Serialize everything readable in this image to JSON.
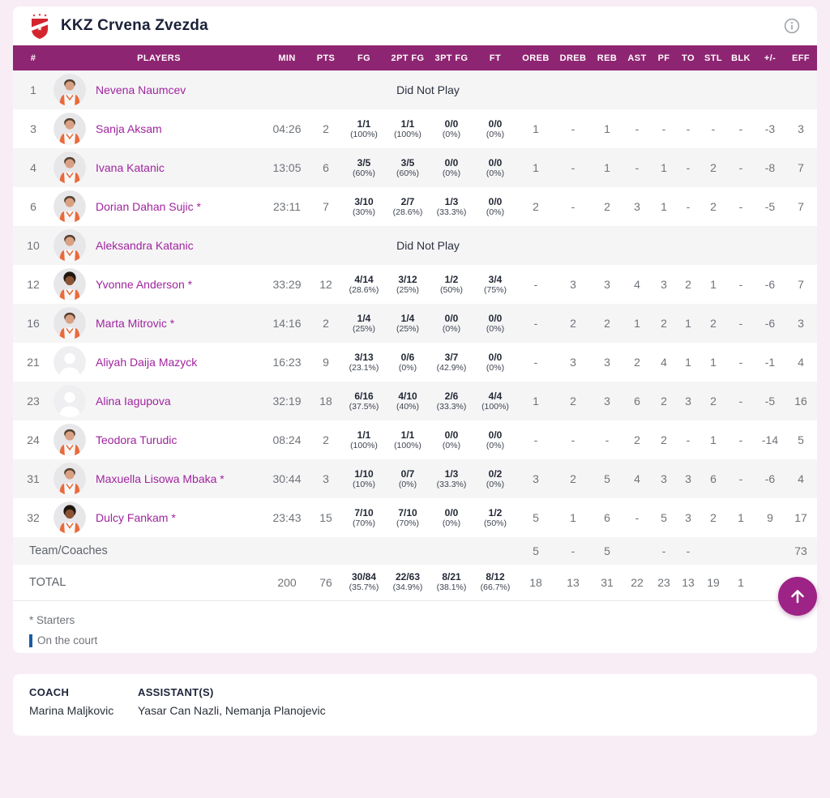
{
  "header": {
    "title": "KKZ Crvena Zvezda"
  },
  "table": {
    "columns": [
      "#",
      "PLAYERS",
      "MIN",
      "PTS",
      "FG",
      "2PT FG",
      "3PT FG",
      "FT",
      "OREB",
      "DREB",
      "REB",
      "AST",
      "PF",
      "TO",
      "STL",
      "BLK",
      "+/-",
      "EFF"
    ],
    "dnp_text": "Did Not Play",
    "players": [
      {
        "num": "1",
        "name": "Nevena Naumcev",
        "avatar": "photo-light",
        "dnp": true
      },
      {
        "num": "3",
        "name": "Sanja Aksam",
        "avatar": "photo-light",
        "min": "04:26",
        "pts": "2",
        "fg": {
          "f": "1/1",
          "p": "(100%)"
        },
        "fg2": {
          "f": "1/1",
          "p": "(100%)"
        },
        "fg3": {
          "f": "0/0",
          "p": "(0%)"
        },
        "ft": {
          "f": "0/0",
          "p": "(0%)"
        },
        "stats": [
          "1",
          "-",
          "1",
          "-",
          "-",
          "-",
          "-",
          "-",
          "-3",
          "3"
        ]
      },
      {
        "num": "4",
        "name": "Ivana Katanic",
        "avatar": "photo-light",
        "min": "13:05",
        "pts": "6",
        "fg": {
          "f": "3/5",
          "p": "(60%)"
        },
        "fg2": {
          "f": "3/5",
          "p": "(60%)"
        },
        "fg3": {
          "f": "0/0",
          "p": "(0%)"
        },
        "ft": {
          "f": "0/0",
          "p": "(0%)"
        },
        "stats": [
          "1",
          "-",
          "1",
          "-",
          "1",
          "-",
          "2",
          "-",
          "-8",
          "7"
        ]
      },
      {
        "num": "6",
        "name": "Dorian Dahan Sujic *",
        "avatar": "photo-light",
        "min": "23:11",
        "pts": "7",
        "fg": {
          "f": "3/10",
          "p": "(30%)"
        },
        "fg2": {
          "f": "2/7",
          "p": "(28.6%)"
        },
        "fg3": {
          "f": "1/3",
          "p": "(33.3%)"
        },
        "ft": {
          "f": "0/0",
          "p": "(0%)"
        },
        "stats": [
          "2",
          "-",
          "2",
          "3",
          "1",
          "-",
          "2",
          "-",
          "-5",
          "7"
        ]
      },
      {
        "num": "10",
        "name": "Aleksandra Katanic",
        "avatar": "photo-light",
        "dnp": true
      },
      {
        "num": "12",
        "name": "Yvonne Anderson *",
        "avatar": "photo-dark",
        "min": "33:29",
        "pts": "12",
        "fg": {
          "f": "4/14",
          "p": "(28.6%)"
        },
        "fg2": {
          "f": "3/12",
          "p": "(25%)"
        },
        "fg3": {
          "f": "1/2",
          "p": "(50%)"
        },
        "ft": {
          "f": "3/4",
          "p": "(75%)"
        },
        "stats": [
          "-",
          "3",
          "3",
          "4",
          "3",
          "2",
          "1",
          "-",
          "-6",
          "7"
        ]
      },
      {
        "num": "16",
        "name": "Marta Mitrovic *",
        "avatar": "photo-light",
        "min": "14:16",
        "pts": "2",
        "fg": {
          "f": "1/4",
          "p": "(25%)"
        },
        "fg2": {
          "f": "1/4",
          "p": "(25%)"
        },
        "fg3": {
          "f": "0/0",
          "p": "(0%)"
        },
        "ft": {
          "f": "0/0",
          "p": "(0%)"
        },
        "stats": [
          "-",
          "2",
          "2",
          "1",
          "2",
          "1",
          "2",
          "-",
          "-6",
          "3"
        ]
      },
      {
        "num": "21",
        "name": "Aliyah Daija Mazyck",
        "avatar": "placeholder",
        "min": "16:23",
        "pts": "9",
        "fg": {
          "f": "3/13",
          "p": "(23.1%)"
        },
        "fg2": {
          "f": "0/6",
          "p": "(0%)"
        },
        "fg3": {
          "f": "3/7",
          "p": "(42.9%)"
        },
        "ft": {
          "f": "0/0",
          "p": "(0%)"
        },
        "stats": [
          "-",
          "3",
          "3",
          "2",
          "4",
          "1",
          "1",
          "-",
          "-1",
          "4"
        ]
      },
      {
        "num": "23",
        "name": "Alina Iagupova",
        "avatar": "placeholder",
        "min": "32:19",
        "pts": "18",
        "fg": {
          "f": "6/16",
          "p": "(37.5%)"
        },
        "fg2": {
          "f": "4/10",
          "p": "(40%)"
        },
        "fg3": {
          "f": "2/6",
          "p": "(33.3%)"
        },
        "ft": {
          "f": "4/4",
          "p": "(100%)"
        },
        "stats": [
          "1",
          "2",
          "3",
          "6",
          "2",
          "3",
          "2",
          "-",
          "-5",
          "16"
        ]
      },
      {
        "num": "24",
        "name": "Teodora Turudic",
        "avatar": "photo-light",
        "min": "08:24",
        "pts": "2",
        "fg": {
          "f": "1/1",
          "p": "(100%)"
        },
        "fg2": {
          "f": "1/1",
          "p": "(100%)"
        },
        "fg3": {
          "f": "0/0",
          "p": "(0%)"
        },
        "ft": {
          "f": "0/0",
          "p": "(0%)"
        },
        "stats": [
          "-",
          "-",
          "-",
          "2",
          "2",
          "-",
          "1",
          "-",
          "-14",
          "5"
        ]
      },
      {
        "num": "31",
        "name": "Maxuella Lisowa Mbaka *",
        "avatar": "photo-light",
        "min": "30:44",
        "pts": "3",
        "fg": {
          "f": "1/10",
          "p": "(10%)"
        },
        "fg2": {
          "f": "0/7",
          "p": "(0%)"
        },
        "fg3": {
          "f": "1/3",
          "p": "(33.3%)"
        },
        "ft": {
          "f": "0/2",
          "p": "(0%)"
        },
        "stats": [
          "3",
          "2",
          "5",
          "4",
          "3",
          "3",
          "6",
          "-",
          "-6",
          "4"
        ]
      },
      {
        "num": "32",
        "name": "Dulcy Fankam *",
        "avatar": "photo-dark",
        "min": "23:43",
        "pts": "15",
        "fg": {
          "f": "7/10",
          "p": "(70%)"
        },
        "fg2": {
          "f": "7/10",
          "p": "(70%)"
        },
        "fg3": {
          "f": "0/0",
          "p": "(0%)"
        },
        "ft": {
          "f": "1/2",
          "p": "(50%)"
        },
        "stats": [
          "5",
          "1",
          "6",
          "-",
          "5",
          "3",
          "2",
          "1",
          "9",
          "17"
        ]
      }
    ],
    "team_row": {
      "label": "Team/Coaches",
      "stats": [
        "5",
        "-",
        "5",
        "",
        "-",
        "-",
        "",
        "",
        "",
        "73"
      ]
    },
    "total_row": {
      "label": "TOTAL",
      "min": "200",
      "pts": "76",
      "fg": {
        "f": "30/84",
        "p": "(35.7%)"
      },
      "fg2": {
        "f": "22/63",
        "p": "(34.9%)"
      },
      "fg3": {
        "f": "8/21",
        "p": "(38.1%)"
      },
      "ft": {
        "f": "8/12",
        "p": "(66.7%)"
      },
      "stats": [
        "18",
        "13",
        "31",
        "22",
        "23",
        "13",
        "19",
        "1",
        "",
        "73"
      ]
    }
  },
  "legend": {
    "starters": "* Starters",
    "on_court": "On the court"
  },
  "coaches": {
    "coach_label": "COACH",
    "coach_name": "Marina Maljkovic",
    "assistant_label": "ASSISTANT(S)",
    "assistant_names": "Yasar Can Nazli, Nemanja Planojevic"
  },
  "colors": {
    "header_bg": "#8E2572",
    "player_name": "#A0249E",
    "scroll_button": "#9D2386",
    "on_court_blue": "#1A5CA8",
    "page_bg": "#F8ECF5"
  }
}
